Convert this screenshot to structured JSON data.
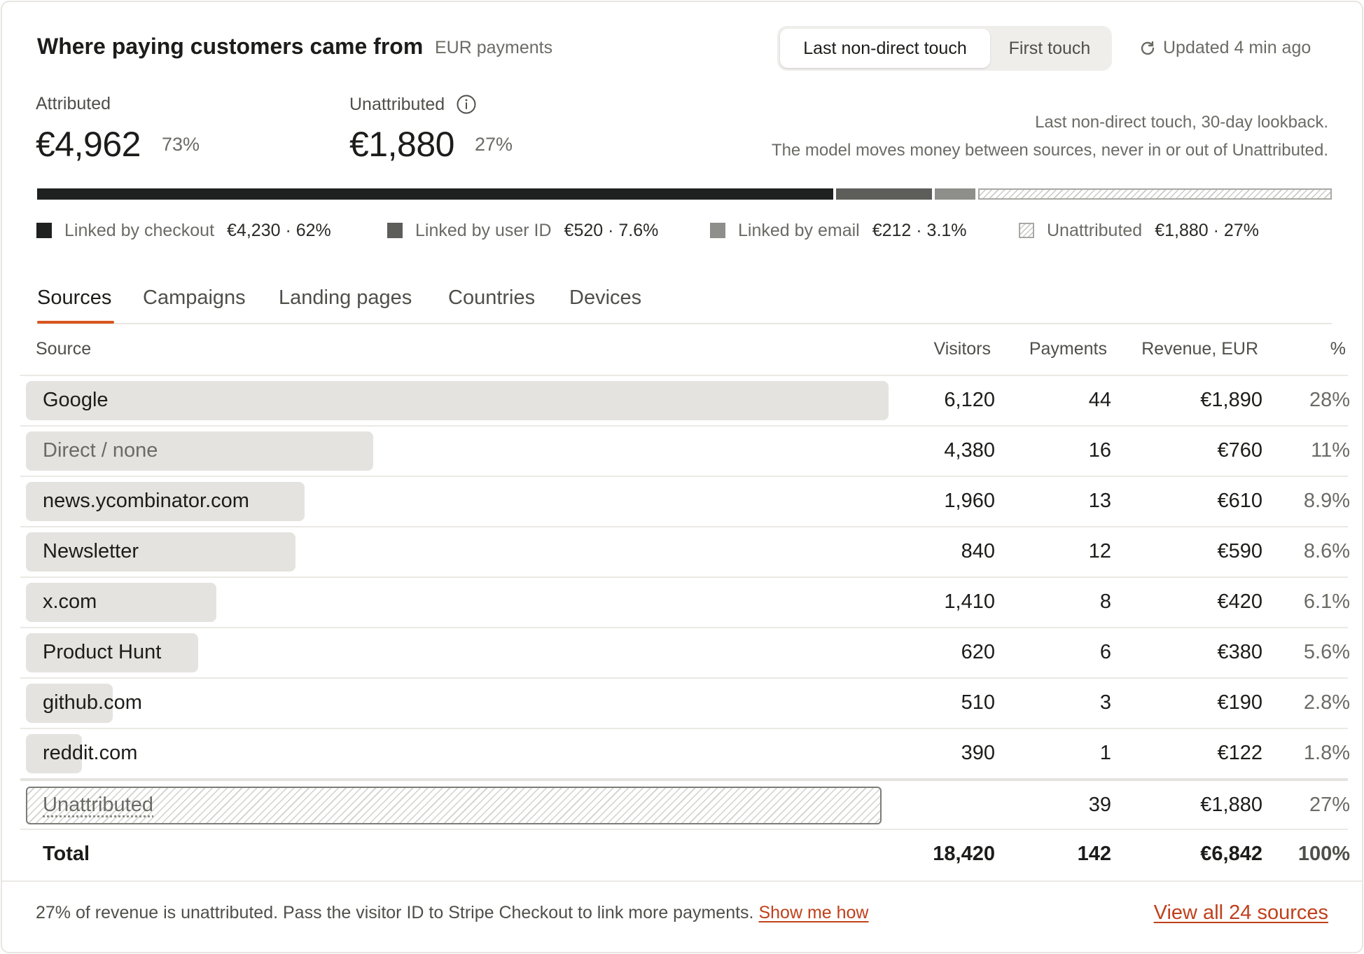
{
  "header": {
    "title": "Where paying customers came from",
    "subtitle": "EUR payments",
    "toggle": {
      "active": "Last non-direct touch",
      "inactive": "First touch"
    },
    "updated": "Updated 4 min ago"
  },
  "metrics": {
    "attributed": {
      "label": "Attributed",
      "value": "€4,962",
      "pct": "73%"
    },
    "unattributed": {
      "label": "Unattributed",
      "value": "€1,880",
      "pct": "27%"
    },
    "note_line1": "Last non-direct touch, 30-day lookback.",
    "note_line2": "The model moves money between sources, never in or out of Unattributed."
  },
  "breakdown": {
    "checkout": {
      "label": "Linked by checkout",
      "value": "€4,230 · 62%",
      "color": "#1e211f"
    },
    "user_id": {
      "label": "Linked by user ID",
      "value": "€520 · 7.6%",
      "color": "#5d5d5a"
    },
    "email": {
      "label": "Linked by email",
      "value": "€212 · 3.1%",
      "color": "#8e8e8a"
    },
    "unattributed": {
      "label": "Unattributed",
      "value": "€1,880 · 27%"
    }
  },
  "tabs": [
    "Sources",
    "Campaigns",
    "Landing pages",
    "Countries",
    "Devices"
  ],
  "table": {
    "headers": {
      "source": "Source",
      "visitors": "Visitors",
      "payments": "Payments",
      "revenue": "Revenue, EUR",
      "pct": "%"
    },
    "rows": [
      {
        "source": "Google",
        "visitors": "6,120",
        "payments": "44",
        "revenue": "€1,890",
        "pct": "28%"
      },
      {
        "source": "Direct / none",
        "visitors": "4,380",
        "payments": "16",
        "revenue": "€760",
        "pct": "11%"
      },
      {
        "source": "news.ycombinator.com",
        "visitors": "1,960",
        "payments": "13",
        "revenue": "€610",
        "pct": "8.9%"
      },
      {
        "source": "Newsletter",
        "visitors": "840",
        "payments": "12",
        "revenue": "€590",
        "pct": "8.6%"
      },
      {
        "source": "x.com",
        "visitors": "1,410",
        "payments": "8",
        "revenue": "€420",
        "pct": "6.1%"
      },
      {
        "source": "Product Hunt",
        "visitors": "620",
        "payments": "6",
        "revenue": "€380",
        "pct": "5.6%"
      },
      {
        "source": "github.com",
        "visitors": "510",
        "payments": "3",
        "revenue": "€190",
        "pct": "2.8%"
      },
      {
        "source": "reddit.com",
        "visitors": "390",
        "payments": "1",
        "revenue": "€122",
        "pct": "1.8%"
      }
    ],
    "unattributed": {
      "source": "Unattributed",
      "payments": "39",
      "revenue": "€1,880",
      "pct": "27%"
    },
    "total": {
      "source": "Total",
      "visitors": "18,420",
      "payments": "142",
      "revenue": "€6,842",
      "pct": "100%"
    }
  },
  "footer": {
    "message": "27% of revenue is unattributed. Pass the visitor ID to Stripe Checkout to link more payments.",
    "help_link": "Show me how",
    "view_all": "View all 24 sources"
  },
  "colors": {
    "accent": "#d9541e",
    "link": "#c0401b",
    "bar": "#e4e3df"
  }
}
